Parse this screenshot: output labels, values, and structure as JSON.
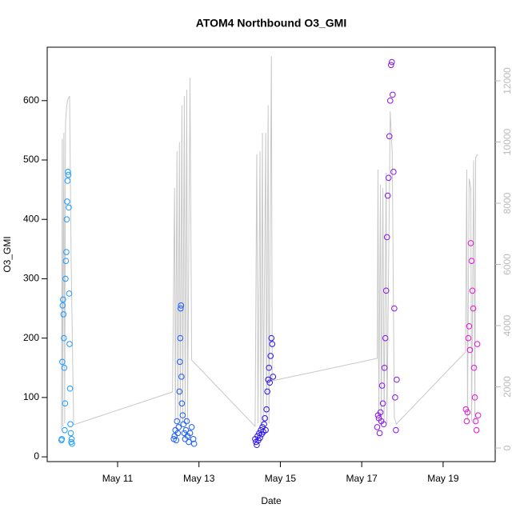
{
  "chart_data": {
    "type": "scatter",
    "title": "ATOM4 Northbound O3_GMI",
    "x_label": "Date",
    "y_label": "O3_GMI",
    "xlim": [
      9.27,
      20.28
    ],
    "xticks": [
      {
        "value": 11,
        "label": "May 11"
      },
      {
        "value": 13,
        "label": "May 13"
      },
      {
        "value": 15,
        "label": "May 15"
      },
      {
        "value": 17,
        "label": "May 17"
      },
      {
        "value": 19,
        "label": "May 19"
      }
    ],
    "ylim": [
      -8,
      690
    ],
    "yticks": [
      0,
      100,
      200,
      300,
      400,
      500,
      600
    ],
    "y2lim": [
      -444,
      13098
    ],
    "y2ticks": [
      0,
      2000,
      4000,
      6000,
      8000,
      10000,
      12000
    ],
    "y2_color": "#bbbbbb",
    "series": [
      {
        "color": "#1e9bff",
        "x": [
          9.62,
          9.63,
          9.64,
          9.65,
          9.66,
          9.67,
          9.68,
          9.69,
          9.7,
          9.71,
          9.72,
          9.73,
          9.74,
          9.75,
          9.76,
          9.77,
          9.78,
          9.79,
          9.8,
          9.81,
          9.82,
          9.83,
          9.84,
          9.85,
          9.86,
          9.87,
          9.88
        ],
        "values": [
          28,
          30,
          160,
          255,
          265,
          240,
          200,
          150,
          45,
          90,
          300,
          330,
          345,
          400,
          430,
          465,
          480,
          475,
          420,
          275,
          190,
          115,
          55,
          40,
          25,
          30,
          22
        ]
      },
      {
        "color": "#1a5cff",
        "x": [
          12.38,
          12.4,
          12.42,
          12.44,
          12.46,
          12.48,
          12.5,
          12.52,
          12.53,
          12.54,
          12.55,
          12.56,
          12.57,
          12.58,
          12.6,
          12.62,
          12.64,
          12.66,
          12.68,
          12.7,
          12.72,
          12.75,
          12.78,
          12.82,
          12.86,
          12.88
        ],
        "values": [
          30,
          35,
          45,
          28,
          60,
          40,
          50,
          110,
          160,
          200,
          250,
          255,
          135,
          90,
          70,
          55,
          40,
          30,
          45,
          60,
          35,
          25,
          40,
          50,
          30,
          22
        ]
      },
      {
        "color": "#2a14eb",
        "x": [
          14.38,
          14.4,
          14.42,
          14.44,
          14.46,
          14.48,
          14.5,
          14.52,
          14.54,
          14.56,
          14.58,
          14.6,
          14.62,
          14.64,
          14.66,
          14.68,
          14.7,
          14.72,
          14.74,
          14.76,
          14.78,
          14.8,
          14.82
        ],
        "values": [
          30,
          25,
          20,
          35,
          28,
          40,
          32,
          45,
          38,
          50,
          42,
          55,
          65,
          45,
          80,
          110,
          130,
          150,
          125,
          170,
          200,
          190,
          135
        ]
      },
      {
        "color": "#8a14e8",
        "x": [
          17.38,
          17.4,
          17.42,
          17.44,
          17.46,
          17.48,
          17.5,
          17.52,
          17.54,
          17.56,
          17.58,
          17.6,
          17.62,
          17.64,
          17.66,
          17.68,
          17.7,
          17.72,
          17.74,
          17.76,
          17.78,
          17.8,
          17.82,
          17.84,
          17.86
        ],
        "values": [
          50,
          70,
          65,
          40,
          75,
          60,
          120,
          90,
          55,
          150,
          200,
          280,
          370,
          440,
          470,
          540,
          600,
          660,
          665,
          610,
          480,
          250,
          100,
          45,
          130
        ]
      },
      {
        "color": "#e614d8",
        "x": [
          19.56,
          19.58,
          19.6,
          19.62,
          19.64,
          19.66,
          19.68,
          19.7,
          19.72,
          19.74,
          19.76,
          19.78,
          19.8,
          19.82,
          19.84,
          19.86
        ],
        "values": [
          80,
          60,
          75,
          200,
          220,
          180,
          360,
          330,
          280,
          250,
          150,
          100,
          60,
          45,
          190,
          70
        ]
      },
      {
        "color": "#c8c8c8",
        "axis": "y2",
        "x": [
          9.62,
          9.64,
          9.65,
          9.68,
          9.7,
          9.72,
          9.75,
          9.78,
          9.82,
          9.86,
          9.92,
          12.35,
          12.4,
          12.42,
          12.46,
          12.48,
          12.52,
          12.54,
          12.58,
          12.6,
          12.64,
          12.66,
          12.7,
          12.72,
          12.78,
          12.82,
          14.38,
          14.42,
          14.45,
          14.5,
          14.52,
          14.56,
          14.58,
          14.64,
          14.66,
          14.7,
          14.72,
          14.78,
          14.8,
          17.38,
          17.4,
          17.42,
          17.46,
          17.48,
          17.52,
          17.55,
          17.6,
          17.62,
          17.7,
          17.75,
          17.8,
          17.85,
          19.55,
          19.58,
          19.6,
          19.64,
          19.68,
          19.7,
          19.75,
          19.78,
          19.8,
          19.85
        ],
        "values": [
          600,
          10100,
          700,
          10300,
          800,
          10600,
          11200,
          11400,
          11500,
          6000,
          760,
          1830,
          8500,
          900,
          9700,
          800,
          10000,
          700,
          11200,
          800,
          11500,
          900,
          11700,
          800,
          12100,
          2876,
          706,
          9600,
          800,
          9700,
          700,
          10300,
          800,
          10300,
          900,
          11200,
          800,
          12800,
          2196,
          2928,
          9100,
          900,
          8600,
          800,
          8500,
          900,
          9000,
          800,
          11000,
          9600,
          1000,
          784,
          3137,
          9100,
          900,
          8800,
          8500,
          900,
          9400,
          800,
          9500,
          9600
        ]
      }
    ]
  }
}
